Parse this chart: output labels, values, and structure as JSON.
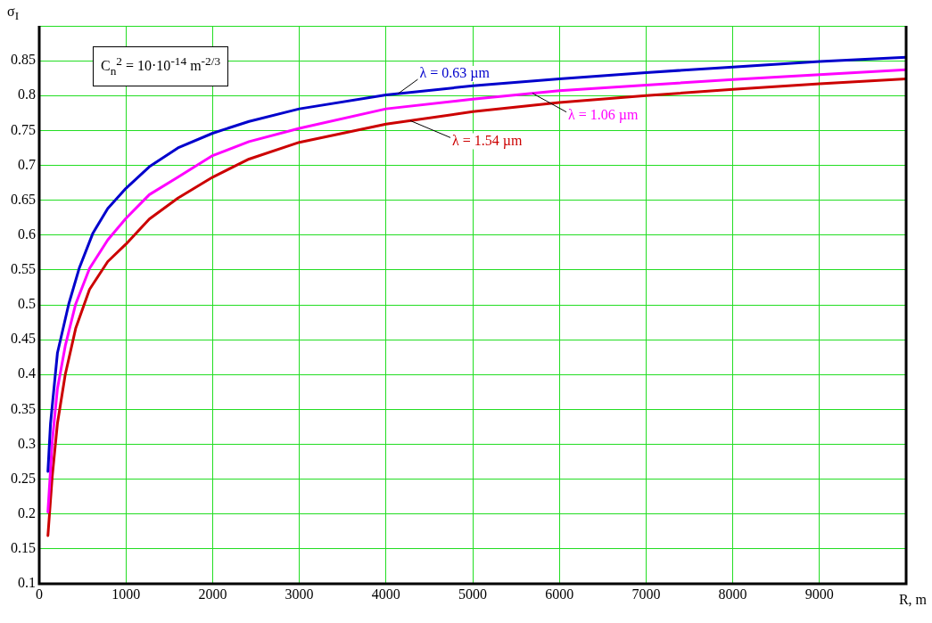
{
  "chart_data": {
    "type": "line",
    "xlabel": "R, m",
    "ylabel": "σ$_{I}$",
    "annotations": [
      "C$_{n}$$^{2}$ = 10·10$^{-14}$ m$^{-2/3}$"
    ],
    "xlim": [
      0,
      10000
    ],
    "xticks": [
      0,
      1000,
      2000,
      3000,
      4000,
      5000,
      6000,
      7000,
      8000,
      9000
    ],
    "ylim": [
      0.1,
      0.9
    ],
    "yticks": [
      0.1,
      0.15,
      0.2,
      0.25,
      0.3,
      0.35,
      0.4,
      0.45,
      0.5,
      0.55,
      0.6,
      0.65,
      0.7,
      0.75,
      0.8,
      0.85,
      {
        "value": 0.9,
        "label": null
      }
    ],
    "grid": true,
    "legend": false,
    "marker": "none",
    "line_style": "solid",
    "series": [
      {
        "name": "λ = 0.63 µm",
        "color": "#0000cc",
        "x": [
          100,
          130,
          210,
          340,
          460,
          620,
          790,
          1000,
          1270,
          1600,
          2000,
          2420,
          3000,
          4000,
          5000,
          6000,
          7000,
          8000,
          9000,
          10000
        ],
        "values": [
          0.261,
          0.33,
          0.431,
          0.501,
          0.552,
          0.603,
          0.638,
          0.667,
          0.698,
          0.725,
          0.746,
          0.763,
          0.781,
          0.801,
          0.814,
          0.824,
          0.833,
          0.841,
          0.849,
          0.855
        ]
      },
      {
        "name": "λ = 1.06 µm",
        "color": "#ff00ff",
        "x": [
          100,
          150,
          210,
          300,
          420,
          580,
          790,
          1000,
          1270,
          1600,
          2000,
          2420,
          3000,
          4000,
          5000,
          6000,
          7000,
          8000,
          9000,
          10000
        ],
        "values": [
          0.203,
          0.304,
          0.38,
          0.441,
          0.501,
          0.552,
          0.593,
          0.624,
          0.658,
          0.683,
          0.714,
          0.734,
          0.753,
          0.781,
          0.795,
          0.807,
          0.815,
          0.823,
          0.83,
          0.837
        ]
      },
      {
        "name": "λ = 1.54 µm",
        "color": "#cc0000",
        "x": [
          100,
          150,
          210,
          300,
          420,
          580,
          790,
          1000,
          1270,
          1600,
          2000,
          2420,
          3000,
          4000,
          5000,
          6000,
          7000,
          8000,
          9000,
          10000
        ],
        "values": [
          0.169,
          0.254,
          0.33,
          0.4,
          0.466,
          0.522,
          0.562,
          0.587,
          0.623,
          0.653,
          0.683,
          0.709,
          0.733,
          0.759,
          0.777,
          0.79,
          0.8,
          0.809,
          0.817,
          0.824
        ]
      }
    ]
  }
}
